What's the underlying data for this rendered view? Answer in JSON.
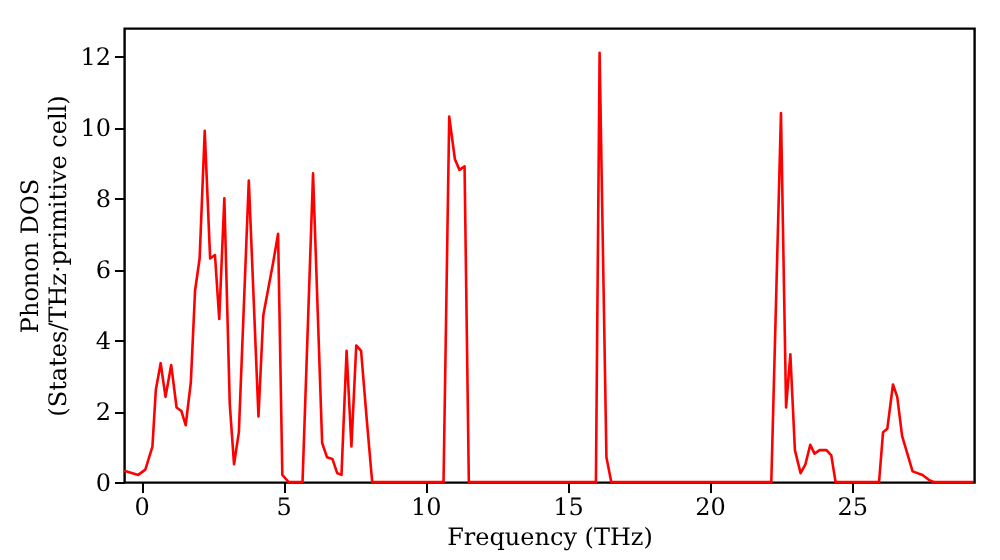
{
  "chart_data": {
    "type": "line",
    "xlabel": "Frequency (THz)",
    "ylabel": "Phonon DOS\n(States/THz·primitive cell)",
    "xlim": [
      -0.6,
      29.3
    ],
    "ylim": [
      0,
      12.8
    ],
    "xticks": [
      0,
      5,
      10,
      15,
      20,
      25
    ],
    "yticks": [
      0,
      2,
      4,
      6,
      8,
      10,
      12
    ],
    "grid": false,
    "marker": "none",
    "line_style": "solid",
    "series": [
      {
        "color": "#ff0000",
        "x": [
          -0.59,
          -0.1,
          0.15,
          0.4,
          0.52,
          0.69,
          0.86,
          1.06,
          1.25,
          1.42,
          1.57,
          1.75,
          1.9,
          2.06,
          2.24,
          2.43,
          2.6,
          2.75,
          2.93,
          3.12,
          3.27,
          3.44,
          3.79,
          4.13,
          4.3,
          4.65,
          4.82,
          4.97,
          5.19,
          5.68,
          6.05,
          6.37,
          6.54,
          6.73,
          6.9,
          7.05,
          7.23,
          7.4,
          7.57,
          7.74,
          7.94,
          8.13,
          10.64,
          10.84,
          11.04,
          11.2,
          11.38,
          11.53,
          16.0,
          16.13,
          16.37,
          16.54,
          22.17,
          22.51,
          22.69,
          22.84,
          23.0,
          23.2,
          23.37,
          23.54,
          23.69,
          23.87,
          24.11,
          24.28,
          24.43,
          25.96,
          26.1,
          26.25,
          26.45,
          26.6,
          26.77,
          27.14,
          27.49,
          27.73,
          27.88,
          29.28
        ],
        "values": [
          0.32,
          0.2,
          0.35,
          1.0,
          2.6,
          3.35,
          2.4,
          3.3,
          2.1,
          2.0,
          1.6,
          2.8,
          5.4,
          6.3,
          9.9,
          6.3,
          6.4,
          4.6,
          8.0,
          2.2,
          0.5,
          1.4,
          8.5,
          1.85,
          4.7,
          6.2,
          7.0,
          0.2,
          0,
          0,
          8.7,
          1.1,
          0.7,
          0.65,
          0.25,
          0.2,
          3.7,
          1.0,
          3.85,
          3.7,
          1.75,
          0,
          0,
          10.3,
          9.1,
          8.8,
          8.9,
          0,
          0,
          12.1,
          0.7,
          0,
          0,
          10.4,
          2.1,
          3.6,
          0.9,
          0.25,
          0.5,
          1.05,
          0.8,
          0.9,
          0.9,
          0.75,
          0,
          0,
          1.4,
          1.5,
          2.75,
          2.4,
          1.3,
          0.3,
          0.2,
          0.05,
          0,
          0
        ]
      }
    ]
  }
}
